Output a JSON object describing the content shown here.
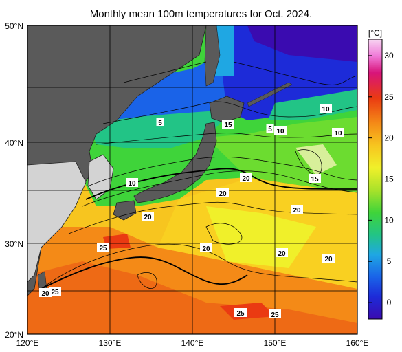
{
  "title": "Monthly mean 100m temperatures for Oct. 2024.",
  "map": {
    "lon_range": [
      120,
      160
    ],
    "lat_range": [
      20,
      50
    ],
    "lon_ticks": [
      "120°E",
      "130°E",
      "140°E",
      "150°E",
      "160°E"
    ],
    "lat_ticks": [
      "20°N",
      "30°N",
      "40°N",
      "50°N"
    ],
    "land_color": "#5a5a5a",
    "grid": "on"
  },
  "colorbar": {
    "unit": "[°C]",
    "ticks": [
      "0",
      "5",
      "10",
      "15",
      "20",
      "25",
      "30"
    ],
    "range": [
      -2,
      32
    ],
    "colors": [
      "#3a0bb0",
      "#1d2bd8",
      "#1a63e8",
      "#1fa7e3",
      "#22c486",
      "#3fd43a",
      "#a9e22a",
      "#f0f02a",
      "#f7c51f",
      "#f48a17",
      "#ea3a12",
      "#d8147a",
      "#f07ad8",
      "#f7d5f2"
    ]
  },
  "contour_labels": [
    {
      "text": "5"
    },
    {
      "text": "15"
    },
    {
      "text": "5"
    },
    {
      "text": "10"
    },
    {
      "text": "10"
    },
    {
      "text": "10"
    },
    {
      "text": "10"
    },
    {
      "text": "20"
    },
    {
      "text": "15"
    },
    {
      "text": "20"
    },
    {
      "text": "20"
    },
    {
      "text": "20"
    },
    {
      "text": "25"
    },
    {
      "text": "20"
    },
    {
      "text": "20"
    },
    {
      "text": "20"
    },
    {
      "text": "25"
    },
    {
      "text": "25"
    },
    {
      "text": "20"
    },
    {
      "text": "25"
    }
  ]
}
